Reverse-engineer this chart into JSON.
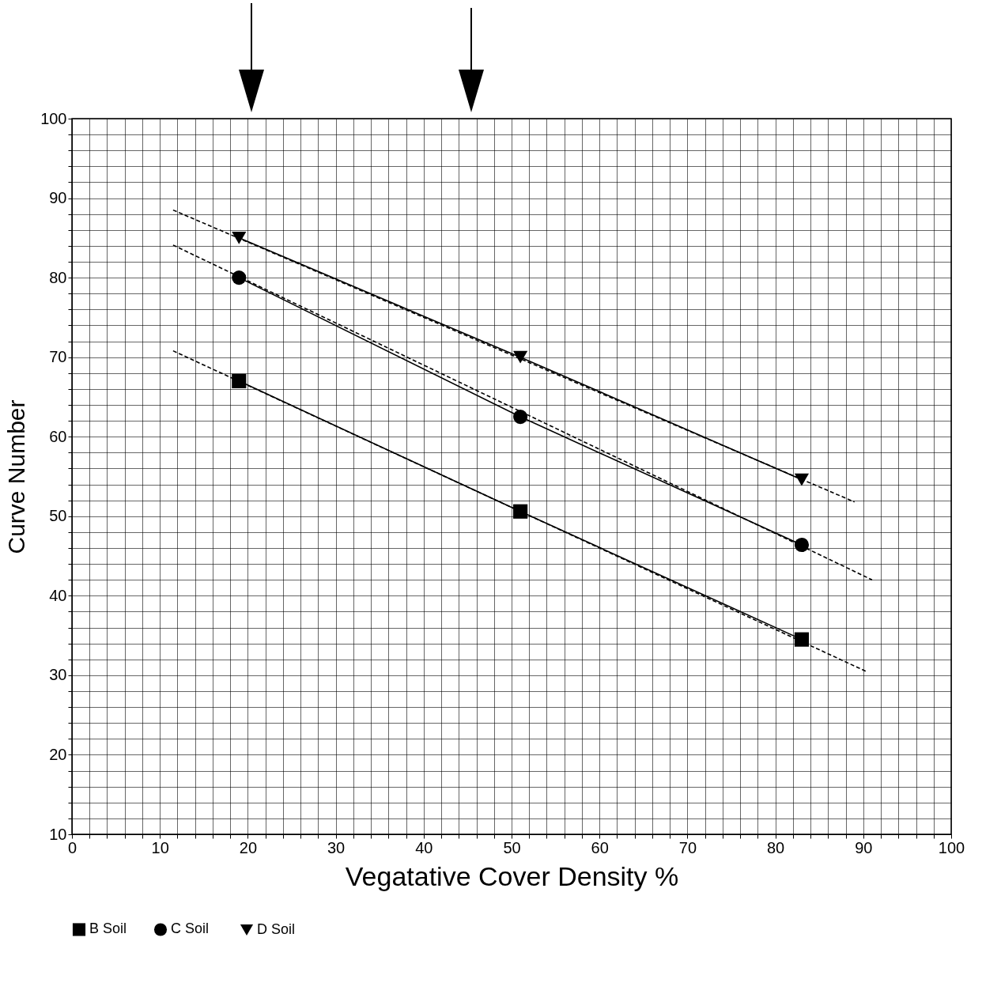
{
  "chart_data": {
    "type": "line",
    "xlabel": "Vegatative Cover Density %",
    "ylabel": "Curve Number",
    "xlim": [
      0,
      100
    ],
    "ylim": [
      10,
      100
    ],
    "xticks": [
      0,
      {
        "value": 2,
        "label": null
      },
      {
        "value": 4,
        "label": null
      },
      {
        "value": 6,
        "label": null
      },
      {
        "value": 8,
        "label": null
      },
      10,
      {
        "value": 12,
        "label": null
      },
      {
        "value": 14,
        "label": null
      },
      {
        "value": 16,
        "label": null
      },
      {
        "value": 18,
        "label": null
      },
      20,
      {
        "value": 22,
        "label": null
      },
      {
        "value": 24,
        "label": null
      },
      {
        "value": 26,
        "label": null
      },
      {
        "value": 28,
        "label": null
      },
      30,
      {
        "value": 32,
        "label": null
      },
      {
        "value": 34,
        "label": null
      },
      {
        "value": 36,
        "label": null
      },
      {
        "value": 38,
        "label": null
      },
      40,
      {
        "value": 42,
        "label": null
      },
      {
        "value": 44,
        "label": null
      },
      {
        "value": 46,
        "label": null
      },
      {
        "value": 48,
        "label": null
      },
      50,
      {
        "value": 52,
        "label": null
      },
      {
        "value": 54,
        "label": null
      },
      {
        "value": 56,
        "label": null
      },
      {
        "value": 58,
        "label": null
      },
      60,
      {
        "value": 62,
        "label": null
      },
      {
        "value": 64,
        "label": null
      },
      {
        "value": 66,
        "label": null
      },
      {
        "value": 68,
        "label": null
      },
      70,
      {
        "value": 72,
        "label": null
      },
      {
        "value": 74,
        "label": null
      },
      {
        "value": 76,
        "label": null
      },
      {
        "value": 78,
        "label": null
      },
      80,
      {
        "value": 82,
        "label": null
      },
      {
        "value": 84,
        "label": null
      },
      {
        "value": 86,
        "label": null
      },
      {
        "value": 88,
        "label": null
      },
      90,
      {
        "value": 92,
        "label": null
      },
      {
        "value": 94,
        "label": null
      },
      {
        "value": 96,
        "label": null
      },
      {
        "value": 98,
        "label": null
      },
      100
    ],
    "yticks": [
      10,
      {
        "value": 12,
        "label": null
      },
      {
        "value": 14,
        "label": null
      },
      {
        "value": 16,
        "label": null
      },
      {
        "value": 18,
        "label": null
      },
      20,
      {
        "value": 22,
        "label": null
      },
      {
        "value": 24,
        "label": null
      },
      {
        "value": 26,
        "label": null
      },
      {
        "value": 28,
        "label": null
      },
      30,
      {
        "value": 32,
        "label": null
      },
      {
        "value": 34,
        "label": null
      },
      {
        "value": 36,
        "label": null
      },
      {
        "value": 38,
        "label": null
      },
      40,
      {
        "value": 42,
        "label": null
      },
      {
        "value": 44,
        "label": null
      },
      {
        "value": 46,
        "label": null
      },
      {
        "value": 48,
        "label": null
      },
      50,
      {
        "value": 52,
        "label": null
      },
      {
        "value": 54,
        "label": null
      },
      {
        "value": 56,
        "label": null
      },
      {
        "value": 58,
        "label": null
      },
      60,
      {
        "value": 62,
        "label": null
      },
      {
        "value": 64,
        "label": null
      },
      {
        "value": 66,
        "label": null
      },
      {
        "value": 68,
        "label": null
      },
      70,
      {
        "value": 72,
        "label": null
      },
      {
        "value": 74,
        "label": null
      },
      {
        "value": 76,
        "label": null
      },
      {
        "value": 78,
        "label": null
      },
      80,
      {
        "value": 82,
        "label": null
      },
      {
        "value": 84,
        "label": null
      },
      {
        "value": 86,
        "label": null
      },
      {
        "value": 88,
        "label": null
      },
      90,
      {
        "value": 92,
        "label": null
      },
      {
        "value": 94,
        "label": null
      },
      {
        "value": 96,
        "label": null
      },
      {
        "value": 98,
        "label": null
      },
      100
    ],
    "grid": true,
    "legend": "bottom",
    "series": [
      {
        "name": "B Soil",
        "color": "#000000",
        "marker": "square",
        "line_style": "solid",
        "x": [
          19,
          51,
          83
        ],
        "values": [
          67,
          50.6,
          34.5
        ]
      },
      {
        "name": "C  Soil",
        "color": "#000000",
        "marker": "circle",
        "line_style": "solid",
        "x": [
          19,
          51,
          83
        ],
        "values": [
          80,
          62.5,
          46.4
        ]
      },
      {
        "name": "D Soil",
        "color": "#000000",
        "marker": "triangle",
        "line_style": "solid",
        "x": [
          19,
          51,
          83
        ],
        "values": [
          85,
          70,
          54.6
        ]
      },
      {
        "color": "#000000",
        "marker": "none",
        "line_style": "dashed",
        "x": [
          11.5,
          90.3
        ],
        "values": [
          70.8,
          30.5
        ]
      },
      {
        "color": "#000000",
        "marker": "none",
        "line_style": "dashed",
        "x": [
          11.5,
          91
        ],
        "values": [
          84.1,
          42
        ]
      },
      {
        "color": "#000000",
        "marker": "none",
        "line_style": "dashed",
        "x": [
          11.5,
          89
        ],
        "values": [
          88.5,
          51.8
        ]
      }
    ]
  }
}
